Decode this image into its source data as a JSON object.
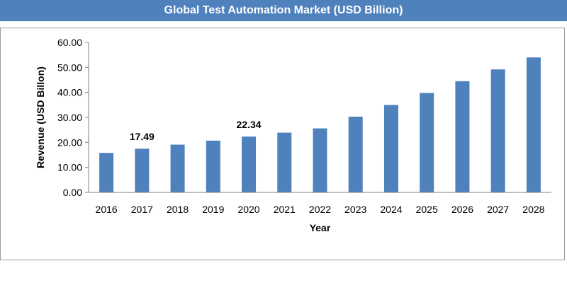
{
  "chart_data": {
    "type": "bar",
    "title": "Global Test Automation Market  (USD Billion)",
    "xlabel": "Year",
    "ylabel": "Revenue (USD Billon)",
    "categories": [
      "2016",
      "2017",
      "2018",
      "2019",
      "2020",
      "2021",
      "2022",
      "2023",
      "2024",
      "2025",
      "2026",
      "2027",
      "2028"
    ],
    "values": [
      15.8,
      17.49,
      19.1,
      20.7,
      22.34,
      23.9,
      25.6,
      30.3,
      35.0,
      39.8,
      44.5,
      49.2,
      54.0
    ],
    "ylim": [
      0,
      60
    ],
    "yticks": [
      "0.00",
      "10.00",
      "20.00",
      "30.00",
      "40.00",
      "50.00",
      "60.00"
    ],
    "data_labels": [
      {
        "category": "2017",
        "text": "17.49"
      },
      {
        "category": "2020",
        "text": "22.34"
      }
    ],
    "grid": false,
    "legend": "none",
    "bar_color": "#4f81bd"
  }
}
